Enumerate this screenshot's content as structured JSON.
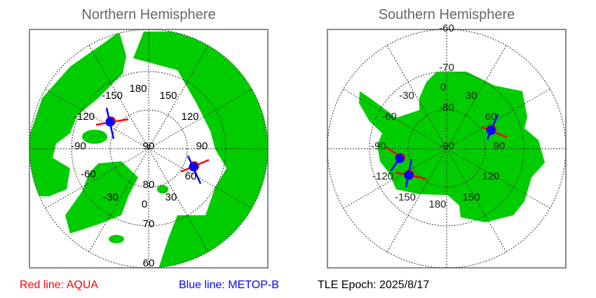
{
  "north": {
    "title": "Northern Hemisphere",
    "lon_labels": [
      "180",
      "150",
      "120",
      "90",
      "60",
      "30",
      "0",
      "-30",
      "-60",
      "-90",
      "-120",
      "-150"
    ],
    "lat_labels": [
      "90",
      "80",
      "70",
      "60"
    ]
  },
  "south": {
    "title": "Southern Hemisphere",
    "lon_labels": [
      "0",
      "30",
      "60",
      "90",
      "120",
      "150",
      "180",
      "-150",
      "-120",
      "-90",
      "-60",
      "-30"
    ],
    "lat_labels": [
      "-90",
      "-80",
      "-70",
      "-60"
    ]
  },
  "legend": {
    "red": "Red line: AQUA",
    "blue": "Blue line: METOP-B",
    "epoch": "TLE Epoch: 2025/8/17"
  },
  "colors": {
    "land": "#00cc00",
    "aqua": "#ff0000",
    "metop": "#0000ff",
    "grid": "#333333"
  }
}
